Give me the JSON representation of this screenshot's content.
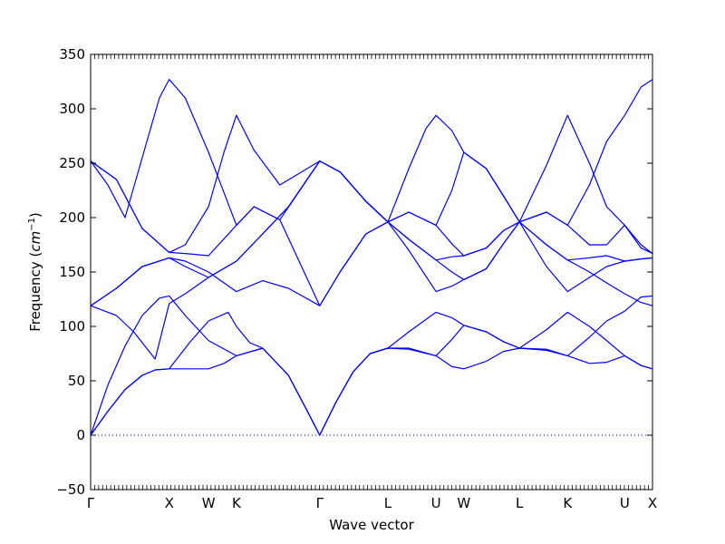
{
  "chart_data": {
    "type": "line",
    "xlabel": "Wave vector",
    "ylabel_prefix": "Frequency (",
    "ylabel_unit_base": "cm",
    "ylabel_unit_exp": "−1",
    "ylabel_suffix": ")",
    "ylim": [
      -50,
      350
    ],
    "yticks": [
      -50,
      0,
      50,
      100,
      150,
      200,
      250,
      300,
      350
    ],
    "xlim": [
      0,
      6.533
    ],
    "xticks": [
      {
        "label": "Γ",
        "x": 0
      },
      {
        "label": "X",
        "x": 0.914
      },
      {
        "label": "W",
        "x": 1.371
      },
      {
        "label": "K",
        "x": 1.695
      },
      {
        "label": "Γ",
        "x": 2.664
      },
      {
        "label": "L",
        "x": 3.456
      },
      {
        "label": "U",
        "x": 4.016
      },
      {
        "label": "W",
        "x": 4.339
      },
      {
        "label": "L",
        "x": 4.986
      },
      {
        "label": "K",
        "x": 5.546
      },
      {
        "label": "U",
        "x": 6.21
      },
      {
        "label": "X",
        "x": 6.533
      }
    ],
    "line_color": "#0000ff",
    "zero_line": "dotted",
    "grid": false,
    "series": [
      {
        "points": [
          [
            0,
            0
          ],
          [
            0.2,
            22
          ],
          [
            0.4,
            42
          ],
          [
            0.6,
            55
          ],
          [
            0.75,
            60
          ],
          [
            0.914,
            61
          ],
          [
            1.1,
            61
          ],
          [
            1.371,
            61
          ],
          [
            1.55,
            66
          ],
          [
            1.695,
            73
          ],
          [
            2.0,
            80
          ],
          [
            2.3,
            55
          ],
          [
            2.5,
            25
          ],
          [
            2.664,
            0
          ],
          [
            2.85,
            30
          ],
          [
            3.05,
            58
          ],
          [
            3.25,
            75
          ],
          [
            3.456,
            80
          ],
          [
            3.7,
            79
          ],
          [
            4.016,
            73
          ],
          [
            4.2,
            63
          ],
          [
            4.339,
            61
          ],
          [
            4.6,
            68
          ],
          [
            4.8,
            77
          ],
          [
            4.986,
            80
          ],
          [
            5.3,
            78
          ],
          [
            5.546,
            73
          ],
          [
            5.8,
            66
          ],
          [
            6.0,
            67
          ],
          [
            6.21,
            73
          ],
          [
            6.4,
            64
          ],
          [
            6.533,
            61
          ]
        ]
      },
      {
        "points": [
          [
            0,
            0
          ],
          [
            0.2,
            22
          ],
          [
            0.4,
            42
          ],
          [
            0.6,
            55
          ],
          [
            0.75,
            60
          ],
          [
            0.914,
            61
          ],
          [
            1.15,
            85
          ],
          [
            1.371,
            105
          ],
          [
            1.6,
            113
          ],
          [
            1.695,
            100
          ],
          [
            1.85,
            85
          ],
          [
            2.0,
            80
          ],
          [
            2.3,
            55
          ],
          [
            2.5,
            25
          ],
          [
            2.664,
            0
          ],
          [
            2.85,
            30
          ],
          [
            3.05,
            58
          ],
          [
            3.25,
            75
          ],
          [
            3.456,
            80
          ],
          [
            3.7,
            95
          ],
          [
            4.016,
            113
          ],
          [
            4.2,
            108
          ],
          [
            4.339,
            101
          ],
          [
            4.6,
            95
          ],
          [
            4.8,
            86
          ],
          [
            4.986,
            80
          ],
          [
            5.3,
            97
          ],
          [
            5.546,
            113
          ],
          [
            5.8,
            100
          ],
          [
            6.0,
            87
          ],
          [
            6.21,
            73
          ],
          [
            6.4,
            64
          ],
          [
            6.533,
            61
          ]
        ]
      },
      {
        "points": [
          [
            0,
            0
          ],
          [
            0.2,
            46
          ],
          [
            0.4,
            82
          ],
          [
            0.6,
            110
          ],
          [
            0.8,
            126
          ],
          [
            0.914,
            128
          ],
          [
            1.1,
            110
          ],
          [
            1.371,
            87
          ],
          [
            1.695,
            73
          ],
          [
            2.0,
            80
          ],
          [
            2.3,
            55
          ],
          [
            2.5,
            25
          ],
          [
            2.664,
            0
          ],
          [
            2.85,
            30
          ],
          [
            3.05,
            58
          ],
          [
            3.25,
            75
          ],
          [
            3.456,
            80
          ],
          [
            3.7,
            80
          ],
          [
            4.016,
            73
          ],
          [
            4.2,
            88
          ],
          [
            4.339,
            101
          ],
          [
            4.6,
            95
          ],
          [
            4.8,
            86
          ],
          [
            4.986,
            80
          ],
          [
            5.3,
            79
          ],
          [
            5.546,
            73
          ],
          [
            5.8,
            90
          ],
          [
            6.0,
            105
          ],
          [
            6.21,
            114
          ],
          [
            6.4,
            127
          ],
          [
            6.533,
            128
          ]
        ]
      },
      {
        "points": [
          [
            0,
            119
          ],
          [
            0.3,
            135
          ],
          [
            0.6,
            155
          ],
          [
            0.914,
            163
          ],
          [
            1.1,
            160
          ],
          [
            1.371,
            150
          ],
          [
            1.695,
            132
          ],
          [
            2.0,
            142
          ],
          [
            2.3,
            135
          ],
          [
            2.664,
            119
          ],
          [
            2.9,
            150
          ],
          [
            3.2,
            185
          ],
          [
            3.456,
            196
          ],
          [
            3.7,
            170
          ],
          [
            4.016,
            132
          ],
          [
            4.2,
            137
          ],
          [
            4.339,
            143
          ],
          [
            4.6,
            153
          ],
          [
            4.8,
            176
          ],
          [
            4.986,
            196
          ],
          [
            5.3,
            155
          ],
          [
            5.546,
            132
          ],
          [
            5.8,
            145
          ],
          [
            6.0,
            155
          ],
          [
            6.21,
            160
          ],
          [
            6.4,
            162
          ],
          [
            6.533,
            163
          ]
        ]
      },
      {
        "points": [
          [
            0,
            119
          ],
          [
            0.3,
            135
          ],
          [
            0.6,
            155
          ],
          [
            0.914,
            163
          ],
          [
            1.1,
            155
          ],
          [
            1.371,
            145
          ],
          [
            1.695,
            160
          ],
          [
            2.0,
            185
          ],
          [
            2.3,
            210
          ],
          [
            2.664,
            252
          ],
          [
            2.9,
            242
          ],
          [
            3.2,
            215
          ],
          [
            3.456,
            196
          ],
          [
            3.7,
            180
          ],
          [
            4.016,
            161
          ],
          [
            4.2,
            150
          ],
          [
            4.339,
            143
          ],
          [
            4.6,
            153
          ],
          [
            4.8,
            176
          ],
          [
            4.986,
            196
          ],
          [
            5.3,
            175
          ],
          [
            5.546,
            161
          ],
          [
            5.8,
            163
          ],
          [
            6.0,
            165
          ],
          [
            6.21,
            160
          ],
          [
            6.4,
            162
          ],
          [
            6.533,
            163
          ]
        ]
      },
      {
        "points": [
          [
            0,
            119
          ],
          [
            0.3,
            110
          ],
          [
            0.5,
            95
          ],
          [
            0.75,
            70
          ],
          [
            0.914,
            121
          ],
          [
            1.1,
            130
          ],
          [
            1.371,
            145
          ],
          [
            1.695,
            160
          ],
          [
            2.0,
            185
          ],
          [
            2.3,
            210
          ],
          [
            2.664,
            252
          ],
          [
            2.9,
            242
          ],
          [
            3.2,
            215
          ],
          [
            3.456,
            196
          ],
          [
            3.7,
            180
          ],
          [
            4.016,
            161
          ],
          [
            4.2,
            164
          ],
          [
            4.339,
            165
          ],
          [
            4.6,
            172
          ],
          [
            4.8,
            188
          ],
          [
            4.986,
            196
          ],
          [
            5.3,
            175
          ],
          [
            5.546,
            161
          ],
          [
            5.8,
            150
          ],
          [
            6.0,
            140
          ],
          [
            6.21,
            130
          ],
          [
            6.4,
            122
          ],
          [
            6.533,
            119
          ]
        ]
      },
      {
        "points": [
          [
            0,
            252
          ],
          [
            0.3,
            235
          ],
          [
            0.6,
            190
          ],
          [
            0.914,
            168
          ],
          [
            1.1,
            167
          ],
          [
            1.371,
            165
          ],
          [
            1.695,
            193
          ],
          [
            1.9,
            210
          ],
          [
            2.2,
            198
          ],
          [
            2.664,
            119
          ],
          [
            2.9,
            150
          ],
          [
            3.2,
            185
          ],
          [
            3.456,
            196
          ],
          [
            3.7,
            205
          ],
          [
            4.016,
            193
          ],
          [
            4.2,
            176
          ],
          [
            4.339,
            165
          ],
          [
            4.6,
            172
          ],
          [
            4.8,
            188
          ],
          [
            4.986,
            196
          ],
          [
            5.3,
            205
          ],
          [
            5.546,
            193
          ],
          [
            5.8,
            175
          ],
          [
            6.0,
            175
          ],
          [
            6.21,
            193
          ],
          [
            6.4,
            175
          ],
          [
            6.533,
            167
          ]
        ]
      },
      {
        "points": [
          [
            0,
            252
          ],
          [
            0.3,
            235
          ],
          [
            0.6,
            190
          ],
          [
            0.914,
            168
          ],
          [
            1.1,
            175
          ],
          [
            1.371,
            210
          ],
          [
            1.55,
            260
          ],
          [
            1.695,
            294
          ],
          [
            1.9,
            262
          ],
          [
            2.2,
            230
          ],
          [
            2.664,
            252
          ],
          [
            2.9,
            242
          ],
          [
            3.2,
            215
          ],
          [
            3.456,
            196
          ],
          [
            3.7,
            245
          ],
          [
            3.9,
            282
          ],
          [
            4.016,
            294
          ],
          [
            4.2,
            280
          ],
          [
            4.339,
            260
          ],
          [
            4.6,
            245
          ],
          [
            4.8,
            220
          ],
          [
            4.986,
            196
          ],
          [
            5.3,
            248
          ],
          [
            5.546,
            294
          ],
          [
            5.8,
            250
          ],
          [
            6.0,
            210
          ],
          [
            6.21,
            193
          ],
          [
            6.4,
            172
          ],
          [
            6.533,
            167
          ]
        ]
      },
      {
        "points": [
          [
            0,
            252
          ],
          [
            0.2,
            230
          ],
          [
            0.4,
            200
          ],
          [
            0.6,
            255
          ],
          [
            0.8,
            310
          ],
          [
            0.914,
            327
          ],
          [
            1.1,
            310
          ],
          [
            1.371,
            260
          ],
          [
            1.695,
            193
          ],
          [
            1.9,
            210
          ],
          [
            2.2,
            198
          ],
          [
            2.664,
            252
          ],
          [
            2.9,
            242
          ],
          [
            3.2,
            215
          ],
          [
            3.456,
            196
          ],
          [
            3.7,
            205
          ],
          [
            4.016,
            193
          ],
          [
            4.2,
            225
          ],
          [
            4.339,
            260
          ],
          [
            4.6,
            245
          ],
          [
            4.8,
            220
          ],
          [
            4.986,
            196
          ],
          [
            5.3,
            205
          ],
          [
            5.546,
            193
          ],
          [
            5.8,
            230
          ],
          [
            6.0,
            270
          ],
          [
            6.21,
            294
          ],
          [
            6.4,
            320
          ],
          [
            6.533,
            327
          ]
        ]
      }
    ]
  }
}
